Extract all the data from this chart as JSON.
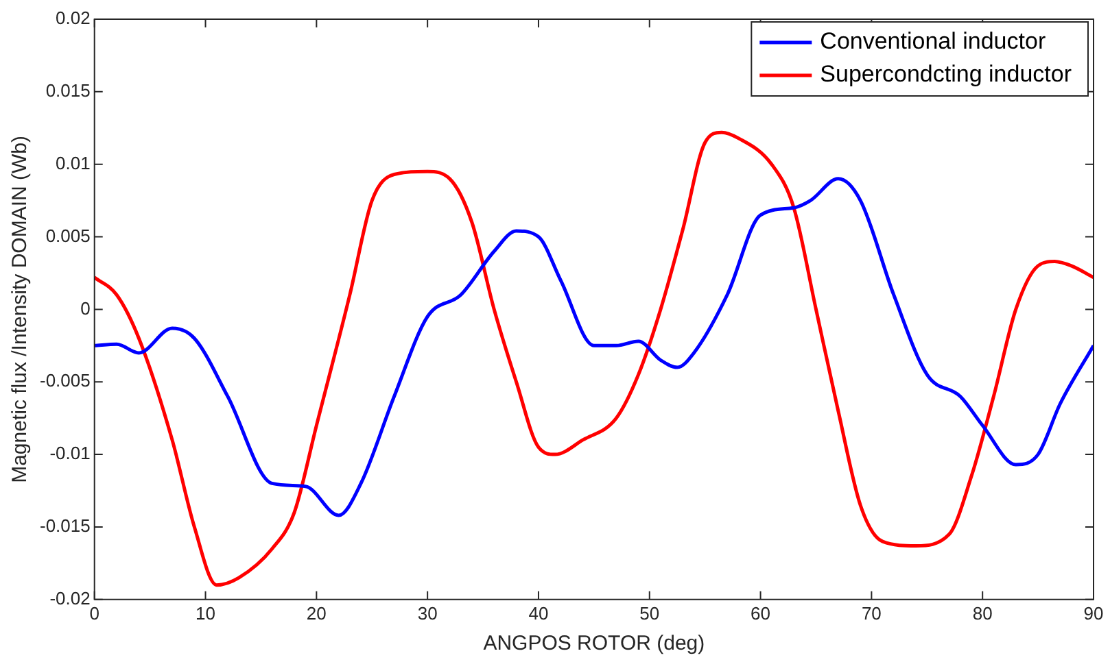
{
  "chart_data": {
    "type": "line",
    "xlabel": "ANGPOS ROTOR (deg)",
    "ylabel": "Magnetic flux /Intensity DOMAIN (Wb)",
    "xlim": [
      0,
      90
    ],
    "xticks": [
      0,
      10,
      20,
      30,
      40,
      50,
      60,
      70,
      80,
      90
    ],
    "ylim": [
      -0.02,
      0.02
    ],
    "yticks": [
      -0.02,
      -0.015,
      -0.01,
      -0.005,
      0,
      0.005,
      0.01,
      0.015,
      0.02
    ],
    "grid": false,
    "legend": "top right",
    "marker": "none",
    "line_style": "solid",
    "series": [
      {
        "name": "Conventional inductor",
        "color": "#0000ff",
        "x": [
          0,
          2,
          4,
          7,
          9,
          12,
          16,
          19,
          22,
          24,
          27,
          30,
          33,
          36,
          38,
          40,
          42,
          45,
          47,
          49,
          51,
          52.5,
          54,
          57,
          60,
          63,
          64.5,
          67,
          69,
          72,
          75,
          78,
          80,
          83,
          85,
          87,
          90
        ],
        "values": [
          -0.0025,
          -0.0024,
          -0.003,
          -0.0013,
          -0.002,
          -0.006,
          -0.012,
          -0.0122,
          -0.0142,
          -0.012,
          -0.006,
          -0.0005,
          0.001,
          0.004,
          0.0054,
          0.005,
          0.002,
          -0.0025,
          -0.0025,
          -0.0022,
          -0.0035,
          -0.004,
          -0.003,
          0.001,
          0.0065,
          0.007,
          0.0075,
          0.009,
          0.0075,
          0.001,
          -0.0045,
          -0.006,
          -0.008,
          -0.0107,
          -0.01,
          -0.0065,
          -0.0025
        ]
      },
      {
        "name": "Supercondcting inductor",
        "color": "#ff0000",
        "x": [
          0,
          2,
          4,
          7,
          9,
          11,
          13,
          16,
          18,
          20,
          23,
          25,
          27,
          30,
          32,
          34,
          36,
          38,
          40,
          41.5,
          44,
          47,
          49,
          51,
          53,
          55,
          56.5,
          58,
          61,
          63,
          65,
          67,
          69,
          71,
          74,
          77,
          79,
          81,
          83,
          85,
          86.5,
          88,
          90
        ],
        "values": [
          0.0022,
          0.001,
          -0.002,
          -0.009,
          -0.015,
          -0.019,
          -0.0185,
          -0.0165,
          -0.014,
          -0.008,
          0.001,
          0.0075,
          0.0093,
          0.0095,
          0.009,
          0.006,
          0,
          -0.005,
          -0.0095,
          -0.01,
          -0.009,
          -0.0075,
          -0.0045,
          0,
          0.0055,
          0.0115,
          0.0122,
          0.0118,
          0.01,
          0.007,
          0,
          -0.007,
          -0.0135,
          -0.016,
          -0.0163,
          -0.0155,
          -0.0115,
          -0.006,
          0,
          0.003,
          0.0033,
          0.003,
          0.0022
        ]
      }
    ]
  }
}
